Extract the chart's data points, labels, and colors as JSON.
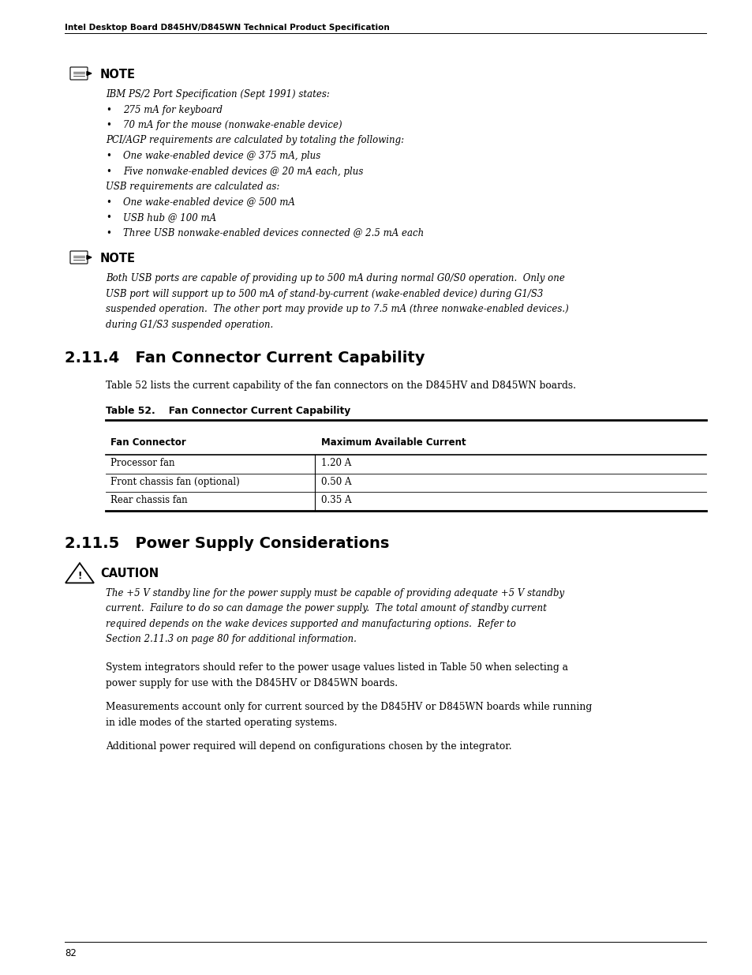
{
  "page_width": 9.54,
  "page_height": 12.35,
  "bg_color": "#ffffff",
  "header_text": "Intel Desktop Board D845HV/D845WN Technical Product Specification",
  "footer_text": "82",
  "note1_body_lines": [
    [
      "italic",
      "IBM PS/2 Port Specification (Sept 1991) states:"
    ],
    [
      "bullet_italic",
      "275 mA for keyboard"
    ],
    [
      "bullet_italic",
      "70 mA for the mouse (nonwake-enable device)"
    ],
    [
      "italic",
      "PCI/AGP requirements are calculated by totaling the following:"
    ],
    [
      "bullet_italic",
      "One wake-enabled device @ 375 mA, plus"
    ],
    [
      "bullet_italic",
      "Five nonwake-enabled devices @ 20 mA each, plus"
    ],
    [
      "italic",
      "USB requirements are calculated as:"
    ],
    [
      "bullet_italic",
      "One wake-enabled device @ 500 mA"
    ],
    [
      "bullet_italic",
      "USB hub @ 100 mA"
    ],
    [
      "bullet_italic",
      "Three USB nonwake-enabled devices connected @ 2.5 mA each"
    ]
  ],
  "note2_body_lines": [
    [
      "italic",
      "Both USB ports are capable of providing up to 500 mA during normal G0/S0 operation.  Only one"
    ],
    [
      "italic",
      "USB port will support up to 500 mA of stand-by-current (wake-enabled device) during G1/S3"
    ],
    [
      "italic",
      "suspended operation.  The other port may provide up to 7.5 mA (three nonwake-enabled devices.)"
    ],
    [
      "italic",
      "during G1/S3 suspended operation."
    ]
  ],
  "section_411_title": "2.11.4   Fan Connector Current Capability",
  "section_411_intro": "Table 52 lists the current capability of the fan connectors on the D845HV and D845WN boards.",
  "table_title": "Table 52.    Fan Connector Current Capability",
  "table_headers": [
    "Fan Connector",
    "Maximum Available Current"
  ],
  "table_rows": [
    [
      "Processor fan",
      "1.20 A"
    ],
    [
      "Front chassis fan (optional)",
      "0.50 A"
    ],
    [
      "Rear chassis fan",
      "0.35 A"
    ]
  ],
  "section_415_title": "2.11.5   Power Supply Considerations",
  "caution_title": "CAUTION",
  "caution_body_lines": [
    [
      "italic",
      "The +5 V standby line for the power supply must be capable of providing adequate +5 V standby"
    ],
    [
      "italic",
      "current.  Failure to do so can damage the power supply.  The total amount of standby current"
    ],
    [
      "italic",
      "required depends on the wake devices supported and manufacturing options.  Refer to"
    ],
    [
      "italic",
      "Section 2.11.3 on page 80 for additional information."
    ]
  ],
  "para1_lines": [
    [
      "normal",
      "System integrators should refer to the power usage values listed in Table 50 when selecting a"
    ],
    [
      "normal",
      "power supply for use with the D845HV or D845WN boards."
    ]
  ],
  "para2_lines": [
    [
      "normal",
      "Measurements account only for current sourced by the D845HV or D845WN boards while running"
    ],
    [
      "normal",
      "in idle modes of the started operating systems."
    ]
  ],
  "para3_lines": [
    [
      "normal",
      "Additional power required will depend on configurations chosen by the integrator."
    ]
  ]
}
